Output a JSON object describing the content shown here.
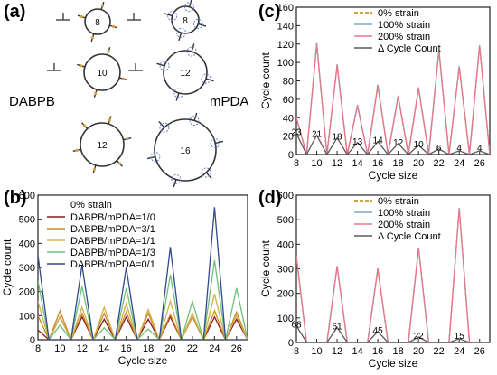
{
  "panel_letters": {
    "a": "(a)",
    "b": "(b)",
    "c": "(c)",
    "d": "(d)"
  },
  "panel_a": {
    "left_label": "DABPB",
    "right_label": "mPDA",
    "left_rings": [
      "8",
      "10",
      "12"
    ],
    "right_rings": [
      "8",
      "12",
      "16"
    ]
  },
  "colors": {
    "zero": "#b8860b",
    "hundred": "#7fa7c9",
    "twohundred": "#e6788a",
    "delta": "#5a5a5a"
  },
  "chart_data": [
    {
      "id": "b",
      "type": "line",
      "xlabel": "Cycle size",
      "ylabel": "Cycle count",
      "xlim": [
        8,
        27
      ],
      "ylim": [
        0,
        600
      ],
      "xticks": [
        8,
        10,
        12,
        14,
        16,
        18,
        20,
        22,
        24,
        26
      ],
      "yticks": [
        0,
        100,
        200,
        300,
        400,
        500,
        600
      ],
      "legend_title": "0% strain",
      "legend_position": "top-left",
      "x": [
        8,
        9,
        10,
        11,
        12,
        13,
        14,
        15,
        16,
        17,
        18,
        19,
        20,
        21,
        22,
        23,
        24,
        25,
        26,
        27
      ],
      "series": [
        {
          "name": "DABPB/mPDA=1/0",
          "color": "#8b1a1a",
          "values": [
            40,
            0,
            95,
            0,
            95,
            0,
            85,
            0,
            95,
            0,
            85,
            0,
            95,
            0,
            0,
            0,
            95,
            0,
            85,
            0
          ]
        },
        {
          "name": "DABPB/mPDA=3/1",
          "color": "#c98a2a",
          "values": [
            100,
            0,
            120,
            0,
            110,
            0,
            110,
            0,
            115,
            0,
            110,
            0,
            105,
            0,
            95,
            0,
            120,
            0,
            115,
            0
          ]
        },
        {
          "name": "DABPB/mPDA=1/1",
          "color": "#d4b04a",
          "values": [
            160,
            0,
            95,
            0,
            135,
            0,
            135,
            0,
            150,
            0,
            125,
            0,
            160,
            0,
            110,
            0,
            190,
            0,
            100,
            0
          ]
        },
        {
          "name": "DABPB/mPDA=1/3",
          "color": "#6fc07a",
          "values": [
            245,
            0,
            60,
            0,
            220,
            0,
            50,
            0,
            215,
            0,
            45,
            0,
            270,
            0,
            160,
            0,
            330,
            0,
            215,
            0
          ]
        },
        {
          "name": "DABPB/mPDA=0/1",
          "color": "#2e4a8c",
          "values": [
            350,
            0,
            0,
            0,
            310,
            0,
            0,
            0,
            300,
            0,
            0,
            0,
            385,
            0,
            0,
            0,
            550,
            0,
            0,
            0
          ]
        }
      ]
    },
    {
      "id": "c",
      "type": "line",
      "xlabel": "Cycle size",
      "ylabel": "Cycle count",
      "xlim": [
        8,
        27
      ],
      "ylim": [
        0,
        160
      ],
      "xticks": [
        8,
        10,
        12,
        14,
        16,
        18,
        20,
        22,
        24,
        26
      ],
      "yticks": [
        0,
        20,
        40,
        60,
        80,
        100,
        120,
        140,
        160
      ],
      "legend_position": "top-right",
      "x": [
        8,
        9,
        10,
        11,
        12,
        13,
        14,
        15,
        16,
        17,
        18,
        19,
        20,
        21,
        22,
        23,
        24,
        25,
        26,
        27
      ],
      "series": [
        {
          "name": "0% strain",
          "color": "#b8860b",
          "dashed": true,
          "values": [
            40,
            0,
            120,
            0,
            97,
            0,
            53,
            0,
            75,
            0,
            63,
            0,
            72,
            0,
            113,
            0,
            95,
            0,
            118,
            0
          ]
        },
        {
          "name": "100% strain",
          "color": "#7fa7c9",
          "values": [
            40,
            0,
            121,
            0,
            98,
            0,
            54,
            0,
            76,
            0,
            64,
            0,
            73,
            0,
            114,
            0,
            96,
            0,
            119,
            0
          ]
        },
        {
          "name": "200% strain",
          "color": "#e6788a",
          "values": [
            40,
            0,
            120,
            0,
            97,
            0,
            53,
            0,
            75,
            0,
            63,
            0,
            72,
            0,
            113,
            0,
            95,
            0,
            118,
            0
          ]
        },
        {
          "name": "Δ Cycle Count",
          "color": "#5a5a5a",
          "values": [
            23,
            0,
            21,
            0,
            18,
            0,
            13,
            0,
            14,
            0,
            12,
            0,
            10,
            0,
            6,
            0,
            4,
            0,
            4,
            0
          ]
        }
      ],
      "annotations": [
        {
          "x": 8,
          "label": "23"
        },
        {
          "x": 10,
          "label": "21"
        },
        {
          "x": 12,
          "label": "18"
        },
        {
          "x": 14,
          "label": "13"
        },
        {
          "x": 16,
          "label": "14"
        },
        {
          "x": 18,
          "label": "12"
        },
        {
          "x": 20,
          "label": "10"
        },
        {
          "x": 22,
          "label": "6"
        },
        {
          "x": 24,
          "label": "4"
        },
        {
          "x": 26,
          "label": "4"
        }
      ]
    },
    {
      "id": "d",
      "type": "line",
      "xlabel": "Cycle size",
      "ylabel": "Cycle count",
      "xlim": [
        8,
        27
      ],
      "ylim": [
        0,
        600
      ],
      "xticks": [
        8,
        10,
        12,
        14,
        16,
        18,
        20,
        22,
        24,
        26
      ],
      "yticks": [
        0,
        100,
        200,
        300,
        400,
        500,
        600
      ],
      "legend_position": "top-left",
      "x": [
        8,
        9,
        10,
        11,
        12,
        13,
        14,
        15,
        16,
        17,
        18,
        19,
        20,
        21,
        22,
        23,
        24,
        25,
        26,
        27
      ],
      "series": [
        {
          "name": "0% strain",
          "color": "#b8860b",
          "dashed": true,
          "values": [
            350,
            0,
            0,
            0,
            310,
            0,
            0,
            0,
            300,
            0,
            0,
            0,
            385,
            0,
            0,
            0,
            545,
            0,
            0,
            0
          ]
        },
        {
          "name": "100% strain",
          "color": "#7fa7c9",
          "values": [
            352,
            0,
            0,
            0,
            312,
            0,
            0,
            0,
            302,
            0,
            0,
            0,
            387,
            0,
            0,
            0,
            548,
            0,
            0,
            0
          ]
        },
        {
          "name": "200% strain",
          "color": "#e6788a",
          "values": [
            350,
            0,
            0,
            0,
            310,
            0,
            0,
            0,
            300,
            0,
            0,
            0,
            385,
            0,
            0,
            0,
            545,
            0,
            0,
            0
          ]
        },
        {
          "name": "Δ Cycle Count",
          "color": "#5a5a5a",
          "values": [
            68,
            0,
            0,
            0,
            61,
            0,
            0,
            0,
            45,
            0,
            0,
            0,
            22,
            0,
            0,
            0,
            15,
            0,
            0,
            0
          ]
        }
      ],
      "annotations": [
        {
          "x": 8,
          "label": "68"
        },
        {
          "x": 12,
          "label": "61"
        },
        {
          "x": 16,
          "label": "45"
        },
        {
          "x": 20,
          "label": "22"
        },
        {
          "x": 24,
          "label": "15"
        }
      ]
    }
  ]
}
